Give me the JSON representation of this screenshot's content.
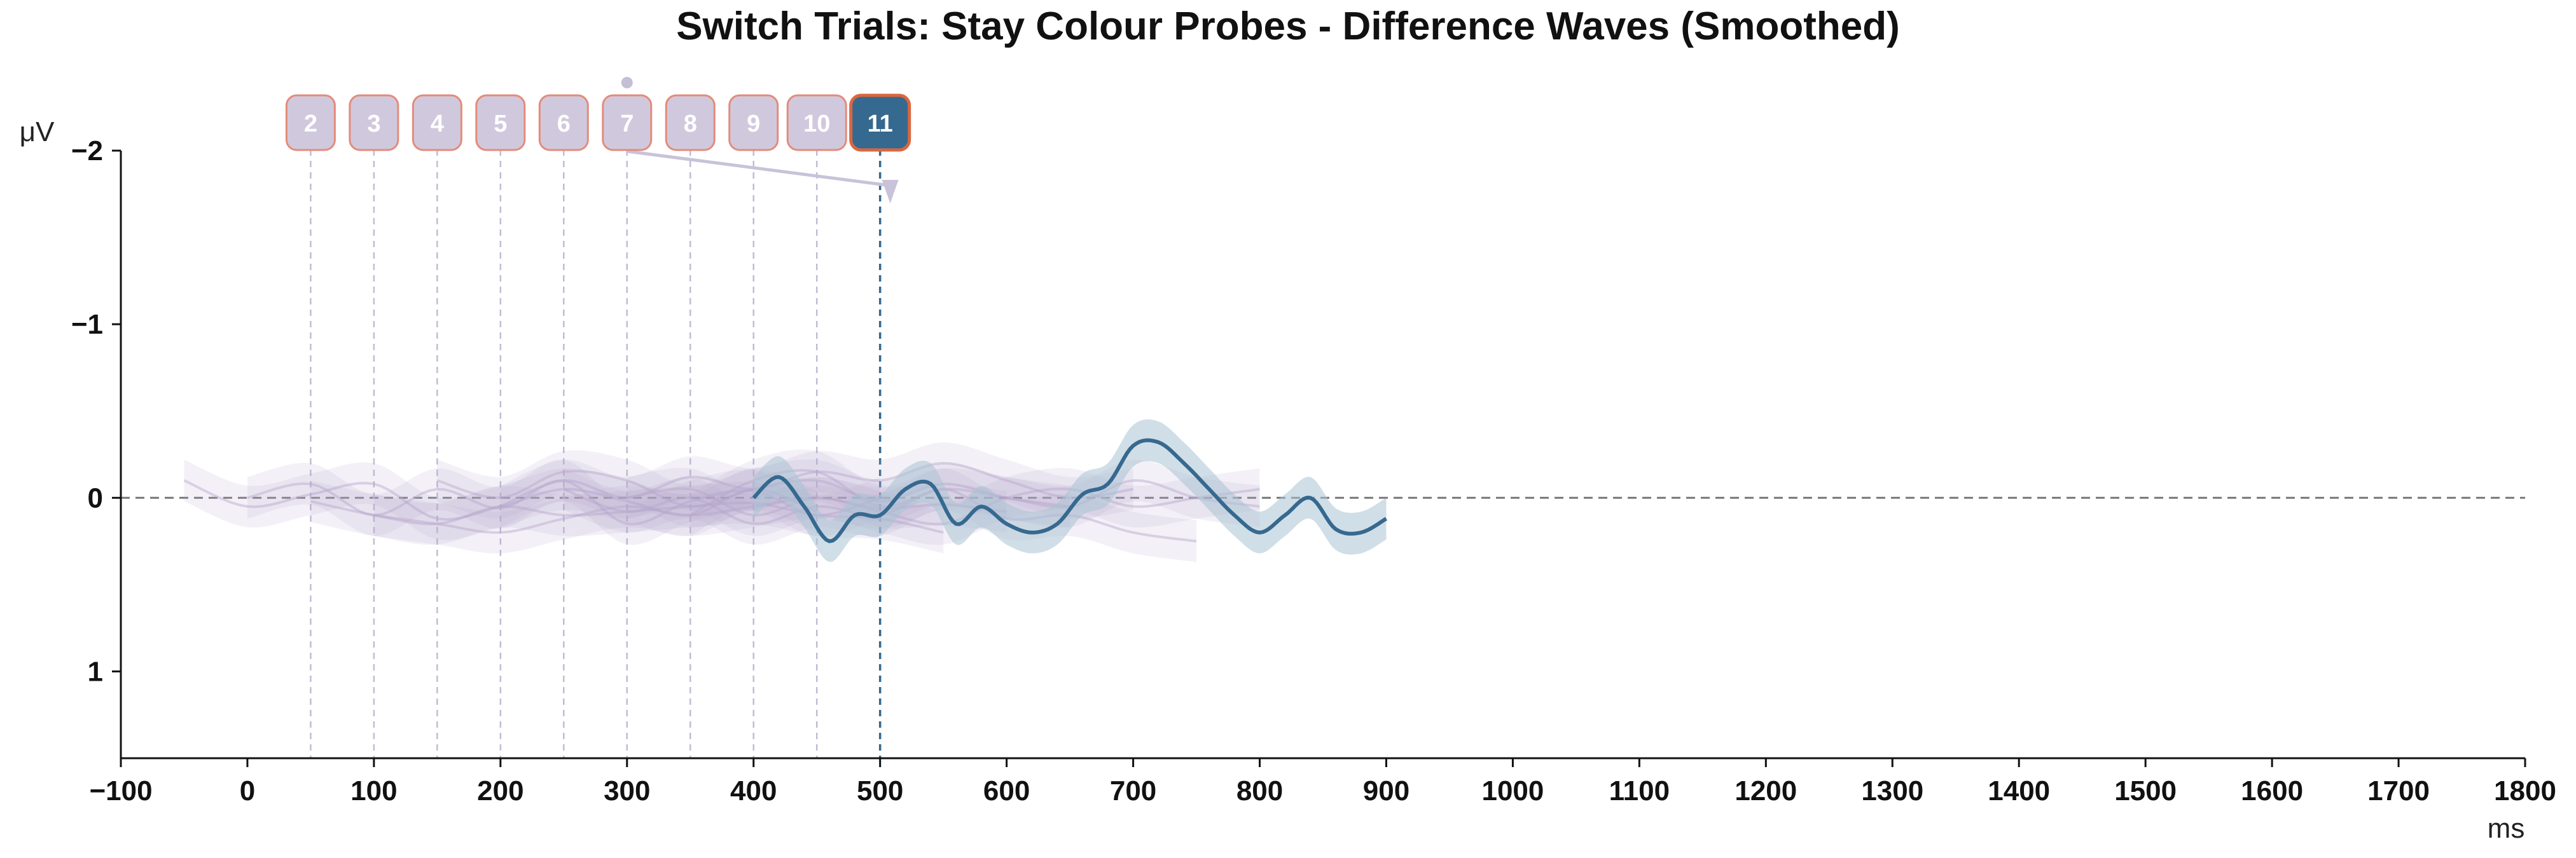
{
  "chart_data": {
    "type": "line",
    "title": "Switch Trials: Stay Colour Probes - Difference Waves (Smoothed)",
    "xlabel": "ms",
    "ylabel": "μV",
    "xlim": [
      -100,
      1800
    ],
    "ylim": [
      -2,
      1.5
    ],
    "y_inverted": true,
    "xticks": [
      -100,
      0,
      100,
      200,
      300,
      400,
      500,
      600,
      700,
      800,
      900,
      1000,
      1100,
      1200,
      1300,
      1400,
      1500,
      1600,
      1700,
      1800
    ],
    "xtick_labels": [
      "−100",
      "0",
      "100",
      "200",
      "300",
      "400",
      "500",
      "600",
      "700",
      "800",
      "900",
      "1000",
      "1100",
      "1200",
      "1300",
      "1400",
      "1500",
      "1600",
      "1700",
      "1800"
    ],
    "yticks": [
      -2,
      -1,
      0,
      1
    ],
    "ytick_labels": [
      "−2",
      "−1",
      "0",
      "1"
    ],
    "zero_line": 0,
    "grid": false,
    "colors": {
      "faded_series": "#b7a7cb",
      "highlight_series": "#36698f",
      "highlight_band": "#a9c2d4",
      "badge_border": "#e48b7a",
      "highlight_badge_border": "#d9673f",
      "axis": "#111111",
      "zero_line": "#777777"
    },
    "markers": [
      {
        "label": "2",
        "x": 50
      },
      {
        "label": "3",
        "x": 100
      },
      {
        "label": "4",
        "x": 150
      },
      {
        "label": "5",
        "x": 200
      },
      {
        "label": "6",
        "x": 250
      },
      {
        "label": "7",
        "x": 300
      },
      {
        "label": "8",
        "x": 350
      },
      {
        "label": "9",
        "x": 400
      },
      {
        "label": "10",
        "x": 450
      },
      {
        "label": "11",
        "x": 500,
        "highlight": true
      }
    ],
    "series": [
      {
        "x": [
          -50,
          0,
          50,
          100,
          150,
          200,
          250,
          300,
          350,
          400,
          450
        ],
        "values": [
          -0.1,
          0.05,
          -0.02,
          -0.08,
          0.12,
          0.05,
          -0.05,
          0.02,
          0.1,
          -0.05,
          0.08
        ]
      },
      {
        "x": [
          0,
          50,
          100,
          150,
          200,
          250,
          300,
          350,
          400,
          450,
          500
        ],
        "values": [
          0.0,
          -0.08,
          0.1,
          -0.05,
          0.06,
          -0.1,
          0.15,
          0.02,
          -0.04,
          0.1,
          0.0
        ]
      },
      {
        "x": [
          50,
          100,
          150,
          200,
          250,
          300,
          350,
          400,
          450,
          500,
          550
        ],
        "values": [
          0.02,
          0.1,
          0.15,
          0.05,
          0.1,
          0.08,
          0.05,
          0.03,
          0.1,
          0.12,
          0.2
        ]
      },
      {
        "x": [
          100,
          150,
          200,
          250,
          300,
          350,
          400,
          450,
          500,
          550,
          600
        ],
        "values": [
          0.1,
          0.15,
          0.2,
          0.12,
          0.05,
          0.1,
          0.05,
          0.0,
          0.06,
          0.04,
          0.08
        ]
      },
      {
        "x": [
          150,
          200,
          250,
          300,
          350,
          400,
          450,
          500,
          550,
          600,
          650
        ],
        "values": [
          -0.1,
          0.0,
          -0.15,
          -0.1,
          0.05,
          -0.05,
          -0.1,
          0.02,
          -0.08,
          0.0,
          0.05
        ]
      },
      {
        "x": [
          200,
          250,
          300,
          350,
          400,
          450,
          500,
          550,
          600,
          650,
          700
        ],
        "values": [
          0.05,
          -0.1,
          0.0,
          -0.12,
          -0.05,
          -0.15,
          -0.1,
          -0.2,
          -0.1,
          0.0,
          -0.05
        ]
      },
      {
        "x": [
          250,
          300,
          350,
          400,
          450,
          500,
          550,
          600,
          650,
          700,
          750
        ],
        "values": [
          -0.05,
          0.08,
          0.0,
          0.15,
          0.05,
          0.1,
          -0.05,
          0.12,
          0.1,
          0.2,
          0.25
        ]
      },
      {
        "x": [
          300,
          350,
          400,
          450,
          500,
          550,
          600,
          650,
          700,
          750,
          800
        ],
        "values": [
          0.0,
          -0.05,
          0.1,
          0.0,
          0.08,
          0.15,
          0.0,
          -0.05,
          0.05,
          0.0,
          -0.05
        ]
      },
      {
        "x": [
          350,
          400,
          450,
          500,
          550,
          600,
          650,
          700,
          750,
          800
        ],
        "values": [
          0.1,
          -0.1,
          -0.15,
          0.05,
          -0.05,
          0.0,
          0.05,
          -0.1,
          0.0,
          0.05
        ]
      },
      {
        "highlight": true,
        "x": [
          400,
          420,
          440,
          460,
          480,
          500,
          520,
          540,
          560,
          580,
          600,
          620,
          640,
          660,
          680,
          700,
          720,
          740,
          760,
          780,
          800,
          820,
          840,
          860,
          880,
          900
        ],
        "values": [
          0.0,
          -0.12,
          0.05,
          0.25,
          0.1,
          0.1,
          -0.05,
          -0.08,
          0.15,
          0.05,
          0.15,
          0.2,
          0.15,
          -0.02,
          -0.08,
          -0.3,
          -0.32,
          -0.2,
          -0.05,
          0.1,
          0.2,
          0.1,
          0.0,
          0.18,
          0.2,
          0.12
        ]
      }
    ]
  }
}
